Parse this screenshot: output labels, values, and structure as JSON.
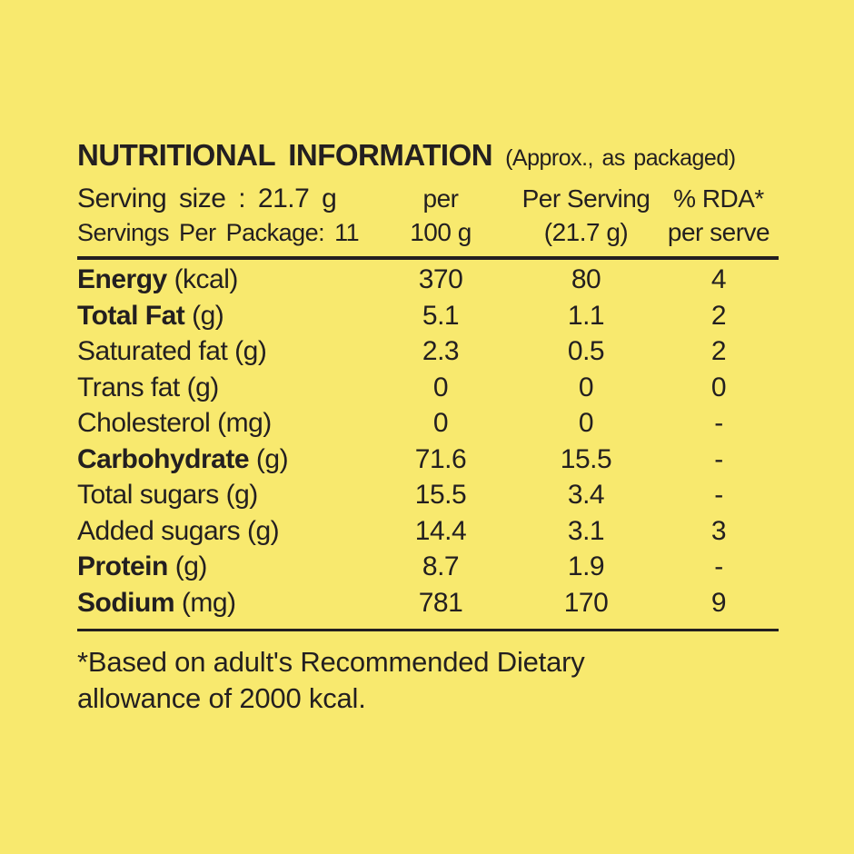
{
  "page": {
    "background_color": "#f8e96e",
    "text_color": "#231f20"
  },
  "header": {
    "title": "NUTRITIONAL INFORMATION",
    "subtitle": "(Approx., as packaged)",
    "serving_size": "Serving size : 21.7 g",
    "servings_per_package": "Servings Per Package: 11",
    "columns": [
      {
        "line1": "per",
        "line2": "100 g"
      },
      {
        "line1": "Per Serving",
        "line2": "(21.7 g)"
      },
      {
        "line1": "% RDA*",
        "line2": "per serve"
      }
    ]
  },
  "table": {
    "rows": [
      {
        "name": "Energy",
        "unit": "(kcal)",
        "per100": "370",
        "per_serving": "80",
        "rda": "4"
      },
      {
        "name": "Total Fat",
        "unit": "(g)",
        "per100": "5.1",
        "per_serving": "1.1",
        "rda": "2"
      },
      {
        "name": "Saturated fat",
        "unit": "(g)",
        "per100": "2.3",
        "per_serving": "0.5",
        "rda": "2"
      },
      {
        "name": "Trans fat",
        "unit": "(g)",
        "per100": "0",
        "per_serving": "0",
        "rda": "0"
      },
      {
        "name": "Cholesterol",
        "unit": "(mg)",
        "per100": "0",
        "per_serving": "0",
        "rda": "-"
      },
      {
        "name": "Carbohydrate",
        "unit": "(g)",
        "per100": "71.6",
        "per_serving": "15.5",
        "rda": "-"
      },
      {
        "name": "Total sugars",
        "unit": "(g)",
        "per100": "15.5",
        "per_serving": "3.4",
        "rda": "-"
      },
      {
        "name": "Added sugars",
        "unit": "(g)",
        "per100": "14.4",
        "per_serving": "3.1",
        "rda": "3"
      },
      {
        "name": "Protein",
        "unit": "(g)",
        "per100": "8.7",
        "per_serving": "1.9",
        "rda": "-"
      },
      {
        "name": "Sodium",
        "unit": "(mg)",
        "per100": "781",
        "per_serving": "170",
        "rda": "9"
      }
    ]
  },
  "footnote": {
    "line1": "*Based on adult's Recommended Dietary",
    "line2": "allowance of 2000 kcal."
  }
}
